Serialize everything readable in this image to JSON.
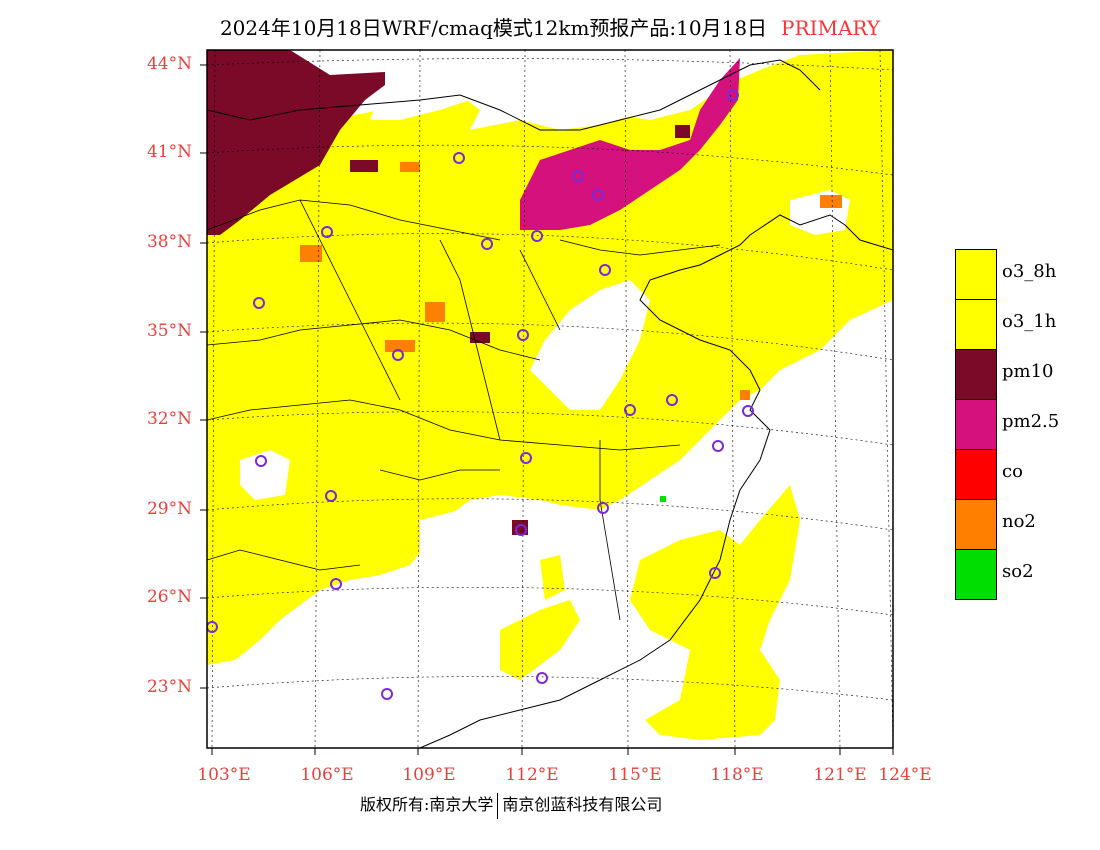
{
  "title": {
    "text": "2024年10月18日WRF/cmaq模式12km预报产品:10月18日",
    "product": "PRIMARY"
  },
  "map": {
    "lat_labels": [
      "44°N",
      "41°N",
      "38°N",
      "35°N",
      "32°N",
      "29°N",
      "26°N",
      "23°N"
    ],
    "lon_labels": [
      "103°E",
      "106°E",
      "109°E",
      "112°E",
      "115°E",
      "118°E",
      "121°E",
      "124°E"
    ],
    "colors": {
      "o3_8h": "#ffff00",
      "o3_1h": "#ffff00",
      "pm10": "#7a0a28",
      "pm25": "#d4117d",
      "co": "#ff0000",
      "no2": "#ff7f00",
      "so2": "#00dd00",
      "station_marker": "#7b2ad8",
      "label": "#e8413c"
    }
  },
  "legend": {
    "items": [
      {
        "label": "o3_8h",
        "color": "#ffff00"
      },
      {
        "label": "o3_1h",
        "color": "#ffff00"
      },
      {
        "label": "pm10",
        "color": "#7a0a28"
      },
      {
        "label": "pm2.5",
        "color": "#d4117d"
      },
      {
        "label": "co",
        "color": "#ff0000"
      },
      {
        "label": "no2",
        "color": "#ff7f00"
      },
      {
        "label": "so2",
        "color": "#00dd00"
      }
    ]
  },
  "footer": {
    "left": "版权所有:南京大学",
    "right": "南京创蓝科技有限公司"
  }
}
